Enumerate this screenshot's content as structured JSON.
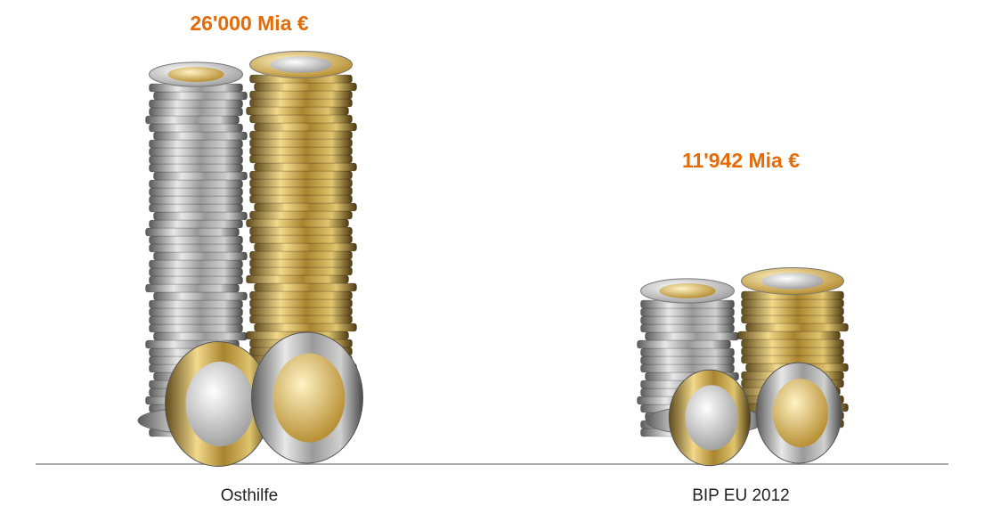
{
  "chart_data": {
    "type": "bar",
    "categories": [
      "Osthilfe",
      "BIP EU 2012"
    ],
    "values": [
      26000,
      11942
    ],
    "value_labels": [
      "26'000 Mia €",
      "11'942 Mia €"
    ]
  }
}
